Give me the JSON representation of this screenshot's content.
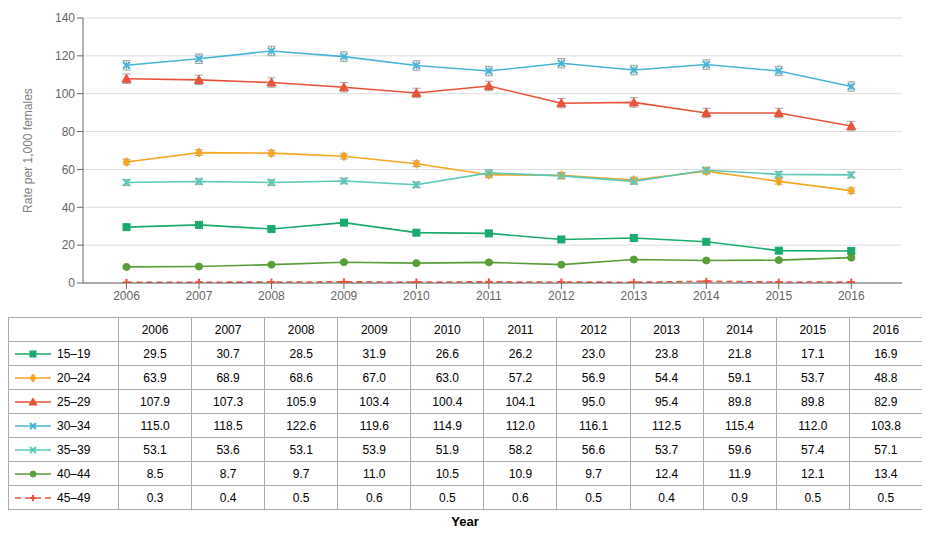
{
  "chart_data": {
    "type": "line",
    "xlabel": "Year",
    "ylabel": "Rate per 1,000 females",
    "x": [
      2006,
      2007,
      2008,
      2009,
      2010,
      2011,
      2012,
      2013,
      2014,
      2015,
      2016
    ],
    "xlim": [
      2005.4,
      2016.7
    ],
    "xticks": [
      2006,
      2007,
      2008,
      2009,
      2010,
      2011,
      2012,
      2013,
      2014,
      2015,
      2016
    ],
    "ylim": [
      0,
      140
    ],
    "yticks": [
      0,
      20,
      40,
      60,
      80,
      100,
      120,
      140
    ],
    "grid": true,
    "series": [
      {
        "name": "15–19",
        "color": "#1aaa6e",
        "marker": "square",
        "line_style": "solid",
        "values": [
          29.5,
          30.7,
          28.5,
          31.9,
          26.6,
          26.2,
          23.0,
          23.8,
          21.8,
          17.1,
          16.9
        ],
        "value_labels": [
          "29.5",
          "30.7",
          "28.5",
          "31.9",
          "26.6",
          "26.2",
          "23.0",
          "23.8",
          "21.8",
          "17.1",
          "16.9"
        ],
        "error": [
          1.2,
          1.2,
          1.2,
          1.2,
          1.2,
          1.2,
          1.2,
          1.2,
          1.2,
          1.2,
          1.2
        ]
      },
      {
        "name": "20–24",
        "color": "#f5a623",
        "marker": "diamond",
        "line_style": "solid",
        "values": [
          63.9,
          68.9,
          68.6,
          67.0,
          63.0,
          57.2,
          56.9,
          54.4,
          59.1,
          53.7,
          48.8
        ],
        "value_labels": [
          "63.9",
          "68.9",
          "68.6",
          "67.0",
          "63.0",
          "57.2",
          "56.9",
          "54.4",
          "59.1",
          "53.7",
          "48.8"
        ],
        "error": [
          1.5,
          1.5,
          1.5,
          1.5,
          1.5,
          1.5,
          1.5,
          1.5,
          1.5,
          1.5,
          1.5
        ]
      },
      {
        "name": "25–29",
        "color": "#e8533a",
        "marker": "triangle",
        "line_style": "solid",
        "values": [
          107.9,
          107.3,
          105.9,
          103.4,
          100.4,
          104.1,
          95.0,
          95.4,
          89.8,
          89.8,
          82.9
        ],
        "value_labels": [
          "107.9",
          "107.3",
          "105.9",
          "103.4",
          "100.4",
          "104.1",
          "95.0",
          "95.4",
          "89.8",
          "89.8",
          "82.9"
        ],
        "error": [
          2.5,
          2.5,
          2.5,
          2.5,
          2.5,
          2.5,
          2.5,
          2.5,
          2.5,
          2.5,
          2.5
        ]
      },
      {
        "name": "30–34",
        "color": "#4ab3d8",
        "marker": "x",
        "line_style": "solid",
        "values": [
          115.0,
          118.5,
          122.6,
          119.6,
          114.9,
          112.0,
          116.1,
          112.5,
          115.4,
          112.0,
          103.8
        ],
        "value_labels": [
          "115.0",
          "118.5",
          "122.6",
          "119.6",
          "114.9",
          "112.0",
          "116.1",
          "112.5",
          "115.4",
          "112.0",
          "103.8"
        ],
        "error": [
          2.5,
          2.5,
          2.5,
          2.5,
          2.5,
          2.5,
          2.5,
          2.5,
          2.5,
          2.5,
          2.5
        ]
      },
      {
        "name": "35–39",
        "color": "#5bc8b8",
        "marker": "x",
        "line_style": "solid",
        "values": [
          53.1,
          53.6,
          53.1,
          53.9,
          51.9,
          58.2,
          56.6,
          53.7,
          59.6,
          57.4,
          57.1
        ],
        "value_labels": [
          "53.1",
          "53.6",
          "53.1",
          "53.9",
          "51.9",
          "58.2",
          "56.6",
          "53.7",
          "59.6",
          "57.4",
          "57.1"
        ],
        "error": [
          1.5,
          1.5,
          1.5,
          1.5,
          1.5,
          1.5,
          1.5,
          1.5,
          1.5,
          1.5,
          1.5
        ]
      },
      {
        "name": "40–44",
        "color": "#5a9e3a",
        "marker": "circle",
        "line_style": "solid",
        "values": [
          8.5,
          8.7,
          9.7,
          11.0,
          10.5,
          10.9,
          9.7,
          12.4,
          11.9,
          12.1,
          13.4
        ],
        "value_labels": [
          "8.5",
          "8.7",
          "9.7",
          "11.0",
          "10.5",
          "10.9",
          "9.7",
          "12.4",
          "11.9",
          "12.1",
          "13.4"
        ],
        "error": [
          0.6,
          0.6,
          0.6,
          0.6,
          0.6,
          0.6,
          0.6,
          0.6,
          0.6,
          0.6,
          0.6
        ]
      },
      {
        "name": "45–49",
        "color": "#e8533a",
        "marker": "plus",
        "line_style": "dashed",
        "values": [
          0.3,
          0.4,
          0.5,
          0.6,
          0.5,
          0.6,
          0.5,
          0.4,
          0.9,
          0.5,
          0.5
        ],
        "value_labels": [
          "0.3",
          "0.4",
          "0.5",
          "0.6",
          "0.5",
          "0.6",
          "0.5",
          "0.4",
          "0.9",
          "0.5",
          "0.5"
        ],
        "error": [
          0.1,
          0.1,
          0.1,
          0.1,
          0.1,
          0.1,
          0.1,
          0.1,
          0.1,
          0.1,
          0.1
        ]
      }
    ]
  }
}
